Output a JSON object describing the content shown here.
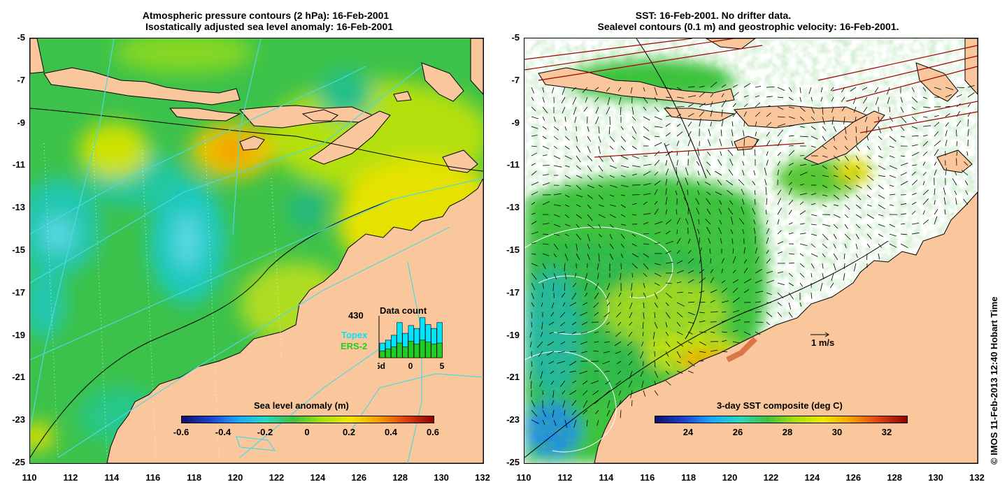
{
  "left_panel": {
    "title_line1": "Atmospheric pressure contours (2 hPa): 16-Feb-2001",
    "title_line2": "Isostatically adjusted sea level anomaly: 16-Feb-2001",
    "colorbar_label": "Sea level anomaly (m)",
    "colorbar_ticks": [
      "-0.6",
      "-0.4",
      "-0.2",
      "0",
      "0.2",
      "0.4",
      "0.6"
    ],
    "inset": {
      "title": "Data count",
      "max_label": "430",
      "legend_topex": "Topex",
      "legend_ers2": "ERS-2",
      "x_ticks": [
        "-5d",
        "0",
        "5"
      ],
      "topex_color": "#00e5ff",
      "ers2_color": "#22cc22",
      "bars_topex": [
        150,
        180,
        230,
        360,
        250,
        330,
        300,
        410,
        340,
        300,
        360
      ],
      "bars_ers2": [
        70,
        90,
        110,
        150,
        110,
        170,
        140,
        180,
        160,
        140,
        150
      ]
    }
  },
  "right_panel": {
    "title_line1": "SST: 16-Feb-2001. No drifter data.",
    "title_line2": "Sealevel contours (0.1 m) and geostrophic velocity: 16-Feb-2001.",
    "colorbar_label": "3-day SST composite (deg C)",
    "colorbar_ticks": [
      "24",
      "26",
      "28",
      "30",
      "32"
    ],
    "scale_arrow_label": "1 m/s"
  },
  "axes": {
    "lat_ticks": [
      "-5",
      "-7",
      "-9",
      "-11",
      "-13",
      "-15",
      "-17",
      "-19",
      "-21",
      "-23",
      "-25"
    ],
    "lon_ticks": [
      "110",
      "112",
      "114",
      "116",
      "118",
      "120",
      "122",
      "124",
      "126",
      "128",
      "130",
      "132"
    ]
  },
  "credit": "© IMOS 11-Feb-2013 12:40 Hobart Time",
  "colors": {
    "land": "#f9c79b",
    "ocean_green": "#3ec43a",
    "track": "#4fd8e0"
  }
}
